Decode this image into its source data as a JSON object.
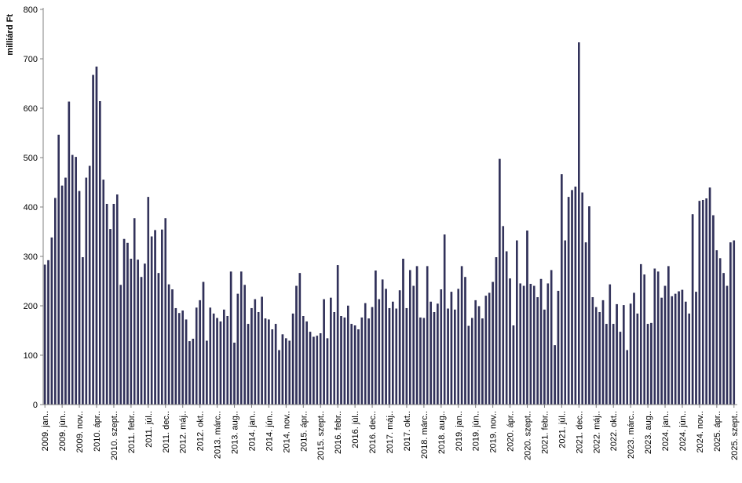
{
  "chart_data": {
    "type": "bar",
    "title": "",
    "ylabel": "milliárd Ft",
    "xlabel": "",
    "ylim": [
      0,
      800
    ],
    "y_ticks": [
      0,
      100,
      200,
      300,
      400,
      500,
      600,
      700,
      800
    ],
    "grid": "off",
    "legend": "none",
    "x_label_step": 5,
    "x_tick_labels": [
      "2009. jan..",
      "2009. jún..",
      "2009. nov..",
      "2010. ápr..",
      "2010. szept..",
      "2011. febr..",
      "2011. júl..",
      "2011. dec..",
      "2012. máj..",
      "2012. okt..",
      "2013. márc..",
      "2013. aug..",
      "2014. jan..",
      "2014. jún..",
      "2014. nov..",
      "2015. ápr..",
      "2015. szept..",
      "2016. febr..",
      "2016. júl..",
      "2016. dec..",
      "2017. máj..",
      "2017. okt..",
      "2018. márc..",
      "2018. aug..",
      "2019. jan..",
      "2019. jún..",
      "2019. nov..",
      "2020. ápr..",
      "2020. szept..",
      "2021. febr..",
      "2021. júl..",
      "2021. dec..",
      "2022. máj..",
      "2022. okt..",
      "2023. márc..",
      "2023. aug..",
      "2024. jan..",
      "2024. jún..",
      "2024. nov..",
      "2025. ápr..",
      "2025. szept.."
    ],
    "values": [
      283,
      292,
      338,
      418,
      546,
      443,
      459,
      613,
      505,
      501,
      432,
      298,
      459,
      483,
      667,
      684,
      614,
      455,
      406,
      355,
      406,
      425,
      242,
      335,
      327,
      295,
      377,
      293,
      258,
      285,
      420,
      340,
      353,
      266,
      354,
      377,
      243,
      233,
      195,
      185,
      190,
      172,
      128,
      133,
      196,
      211,
      248,
      129,
      196,
      184,
      175,
      168,
      192,
      179,
      269,
      125,
      224,
      269,
      242,
      163,
      195,
      213,
      187,
      218,
      174,
      172,
      152,
      163,
      110,
      142,
      134,
      129,
      184,
      240,
      266,
      179,
      168,
      147,
      137,
      139,
      144,
      213,
      134,
      216,
      187,
      282,
      179,
      176,
      200,
      163,
      160,
      152,
      176,
      205,
      174,
      197,
      271,
      213,
      253,
      234,
      195,
      208,
      194,
      231,
      295,
      195,
      272,
      240,
      280,
      176,
      175,
      280,
      208,
      187,
      204,
      233,
      344,
      194,
      228,
      192,
      234,
      280,
      258,
      159,
      175,
      211,
      199,
      174,
      220,
      226,
      248,
      298,
      497,
      361,
      310,
      255,
      160,
      332,
      245,
      240,
      352,
      244,
      240,
      217,
      254,
      192,
      245,
      272,
      120,
      230,
      466,
      332,
      420,
      434,
      441,
      733,
      429,
      328,
      401,
      217,
      197,
      187,
      211,
      163,
      243,
      163,
      203,
      147,
      201,
      110,
      204,
      226,
      184,
      284,
      263,
      163,
      165,
      275,
      269,
      216,
      240,
      280,
      219,
      224,
      229,
      232,
      208,
      184,
      385,
      228,
      412,
      414,
      417,
      439,
      383,
      312,
      296,
      266,
      240,
      328,
      332
    ],
    "colors": {
      "bar": "#32325C",
      "bar_edge": "#1E1E45",
      "axis": "#808080",
      "text": "#000000",
      "background": "#FFFFFF"
    }
  }
}
